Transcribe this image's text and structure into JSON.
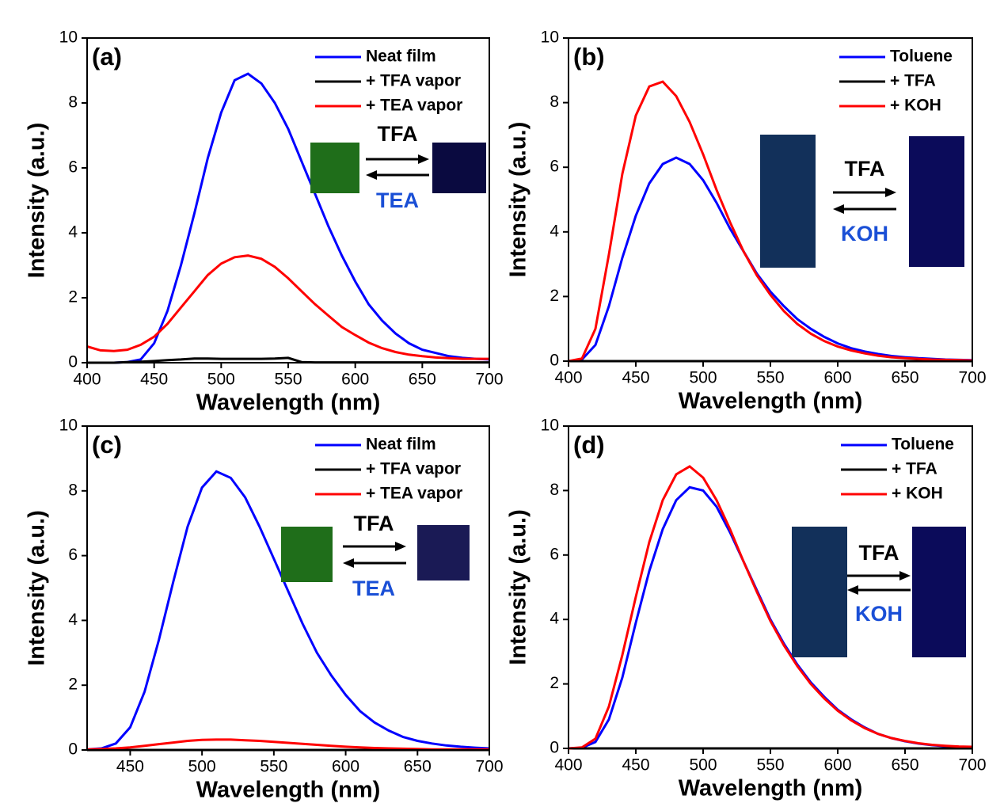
{
  "chart_data": [
    {
      "type": "line",
      "annotations": [
        "(a)",
        "TFA",
        "TEA"
      ],
      "x_label": "Wavelength (nm)",
      "y_label": "Intensity (a.u.)",
      "x": [
        400,
        410,
        420,
        430,
        440,
        450,
        460,
        470,
        480,
        490,
        500,
        510,
        520,
        530,
        540,
        550,
        560,
        570,
        580,
        590,
        600,
        610,
        620,
        630,
        640,
        650,
        660,
        670,
        680,
        690,
        700
      ],
      "series": [
        {
          "name": "Neat film",
          "color": "#0000ff",
          "values": [
            0,
            0,
            0,
            0.02,
            0.1,
            0.6,
            1.6,
            3.0,
            4.6,
            6.3,
            7.7,
            8.7,
            8.9,
            8.6,
            8.0,
            7.2,
            6.2,
            5.2,
            4.2,
            3.3,
            2.5,
            1.8,
            1.3,
            0.9,
            0.6,
            0.4,
            0.3,
            0.2,
            0.15,
            0.12,
            0.1
          ]
        },
        {
          "name": "+ TFA vapor",
          "color": "#000000",
          "values": [
            0,
            0,
            0,
            0.02,
            0.03,
            0.05,
            0.08,
            0.1,
            0.13,
            0.13,
            0.12,
            0.12,
            0.12,
            0.12,
            0.13,
            0.15,
            0.02,
            0.01,
            0.01,
            0.01,
            0.01,
            0.01,
            0.01,
            0.01,
            0.01,
            0.01,
            0.01,
            0.01,
            0.01,
            0.01,
            0.01
          ]
        },
        {
          "name": "+ TEA vapor",
          "color": "#ff0000",
          "values": [
            0.5,
            0.38,
            0.36,
            0.4,
            0.55,
            0.8,
            1.2,
            1.7,
            2.2,
            2.7,
            3.05,
            3.25,
            3.3,
            3.2,
            2.95,
            2.6,
            2.2,
            1.8,
            1.45,
            1.1,
            0.85,
            0.62,
            0.45,
            0.33,
            0.25,
            0.2,
            0.16,
            0.14,
            0.12,
            0.12,
            0.12
          ]
        }
      ],
      "xlim": [
        400,
        700
      ],
      "ylim": [
        0,
        10
      ],
      "xticks": [
        400,
        450,
        500,
        550,
        600,
        650,
        700
      ],
      "yticks": [
        0,
        2,
        4,
        6,
        8,
        10
      ],
      "legend": "upper right"
    },
    {
      "type": "line",
      "annotations": [
        "(b)",
        "TFA",
        "KOH"
      ],
      "x_label": "Wavelength (nm)",
      "y_label": "Intensity (a.u.)",
      "x": [
        400,
        410,
        420,
        430,
        440,
        450,
        460,
        470,
        480,
        490,
        500,
        510,
        520,
        530,
        540,
        550,
        560,
        570,
        580,
        590,
        600,
        610,
        620,
        630,
        640,
        650,
        660,
        670,
        680,
        690,
        700
      ],
      "series": [
        {
          "name": "Toluene",
          "color": "#0000ff",
          "values": [
            0,
            0.05,
            0.5,
            1.7,
            3.2,
            4.5,
            5.5,
            6.1,
            6.3,
            6.1,
            5.6,
            4.9,
            4.1,
            3.4,
            2.7,
            2.15,
            1.7,
            1.3,
            1.0,
            0.75,
            0.55,
            0.4,
            0.3,
            0.22,
            0.16,
            0.12,
            0.09,
            0.07,
            0.05,
            0.04,
            0.03
          ]
        },
        {
          "name": "+ TFA",
          "color": "#000000",
          "values": [
            0,
            0,
            0,
            0,
            0,
            0,
            0,
            0,
            0,
            0,
            0,
            0,
            0,
            0,
            0,
            0,
            0,
            0,
            0,
            0,
            0,
            0,
            0,
            0,
            0,
            0,
            0,
            0,
            0,
            0,
            0
          ]
        },
        {
          "name": "+ KOH",
          "color": "#ff0000",
          "values": [
            0,
            0.08,
            1.0,
            3.3,
            5.8,
            7.6,
            8.5,
            8.65,
            8.2,
            7.4,
            6.4,
            5.3,
            4.3,
            3.4,
            2.65,
            2.05,
            1.55,
            1.15,
            0.85,
            0.62,
            0.45,
            0.33,
            0.24,
            0.17,
            0.12,
            0.09,
            0.07,
            0.05,
            0.04,
            0.03,
            0.02
          ]
        }
      ],
      "xlim": [
        400,
        700
      ],
      "ylim": [
        0,
        10
      ],
      "xticks": [
        400,
        450,
        500,
        550,
        600,
        650,
        700
      ],
      "yticks": [
        0,
        2,
        4,
        6,
        8,
        10
      ],
      "legend": "upper right"
    },
    {
      "type": "line",
      "annotations": [
        "(c)",
        "TFA",
        "TEA"
      ],
      "x_label": "Wavelength (nm)",
      "y_label": "Intensity (a.u.)",
      "x": [
        420,
        430,
        440,
        450,
        460,
        470,
        480,
        490,
        500,
        510,
        520,
        530,
        540,
        550,
        560,
        570,
        580,
        590,
        600,
        610,
        620,
        630,
        640,
        650,
        660,
        670,
        680,
        690,
        700
      ],
      "series": [
        {
          "name": "Neat film",
          "color": "#0000ff",
          "values": [
            0.02,
            0.05,
            0.2,
            0.7,
            1.8,
            3.4,
            5.2,
            6.9,
            8.1,
            8.6,
            8.4,
            7.8,
            6.9,
            5.9,
            4.9,
            3.9,
            3.0,
            2.3,
            1.7,
            1.2,
            0.85,
            0.6,
            0.4,
            0.28,
            0.2,
            0.14,
            0.1,
            0.07,
            0.05
          ]
        },
        {
          "name": "+ TFA vapor",
          "color": "#000000",
          "values": [
            0,
            0,
            0,
            0,
            0,
            0,
            0,
            0,
            0,
            0,
            0,
            0,
            0,
            0,
            0,
            0,
            0,
            0,
            0,
            0,
            0,
            0,
            0,
            0,
            0,
            0,
            0,
            0,
            0
          ]
        },
        {
          "name": "+ TEA vapor",
          "color": "#ff0000",
          "values": [
            0.02,
            0.03,
            0.05,
            0.08,
            0.13,
            0.18,
            0.23,
            0.28,
            0.31,
            0.32,
            0.32,
            0.3,
            0.28,
            0.25,
            0.22,
            0.19,
            0.16,
            0.13,
            0.1,
            0.08,
            0.06,
            0.05,
            0.04,
            0.03,
            0.02,
            0.02,
            0.02,
            0.02,
            0.02
          ]
        }
      ],
      "xlim": [
        420,
        700
      ],
      "ylim": [
        0,
        10
      ],
      "xticks": [
        450,
        500,
        550,
        600,
        650,
        700
      ],
      "yticks": [
        0,
        2,
        4,
        6,
        8,
        10
      ],
      "legend": "upper right"
    },
    {
      "type": "line",
      "annotations": [
        "(d)",
        "TFA",
        "KOH"
      ],
      "x_label": "Wavelength (nm)",
      "y_label": "Intensity (a.u.)",
      "x": [
        400,
        410,
        420,
        430,
        440,
        450,
        460,
        470,
        480,
        490,
        500,
        510,
        520,
        530,
        540,
        550,
        560,
        570,
        580,
        590,
        600,
        610,
        620,
        630,
        640,
        650,
        660,
        670,
        680,
        690,
        700
      ],
      "series": [
        {
          "name": "Toluene",
          "color": "#0000ff",
          "values": [
            0,
            0.02,
            0.2,
            0.9,
            2.2,
            3.9,
            5.5,
            6.8,
            7.7,
            8.1,
            8.0,
            7.5,
            6.7,
            5.8,
            4.9,
            4.0,
            3.25,
            2.6,
            2.05,
            1.6,
            1.2,
            0.9,
            0.65,
            0.45,
            0.32,
            0.22,
            0.15,
            0.1,
            0.07,
            0.05,
            0.04
          ]
        },
        {
          "name": "+ TFA",
          "color": "#000000",
          "values": [
            0,
            0,
            0,
            0,
            0,
            0,
            0,
            0,
            0,
            0,
            0,
            0,
            0,
            0,
            0,
            0,
            0,
            0,
            0,
            0,
            0,
            0,
            0,
            0,
            0,
            0,
            0,
            0,
            0,
            0,
            0
          ]
        },
        {
          "name": "+ KOH",
          "color": "#ff0000",
          "values": [
            0,
            0.03,
            0.3,
            1.3,
            2.9,
            4.7,
            6.4,
            7.7,
            8.5,
            8.75,
            8.4,
            7.7,
            6.8,
            5.8,
            4.85,
            3.95,
            3.2,
            2.55,
            2.0,
            1.55,
            1.17,
            0.87,
            0.63,
            0.45,
            0.32,
            0.23,
            0.16,
            0.11,
            0.08,
            0.06,
            0.05
          ]
        }
      ],
      "xlim": [
        400,
        700
      ],
      "ylim": [
        0,
        10
      ],
      "xticks": [
        400,
        450,
        500,
        550,
        600,
        650,
        700
      ],
      "yticks": [
        0,
        2,
        4,
        6,
        8,
        10
      ],
      "legend": "upper right"
    }
  ]
}
